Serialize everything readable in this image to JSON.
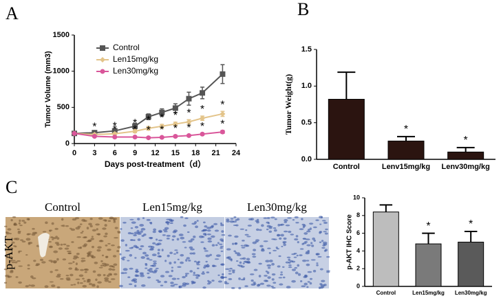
{
  "chart_data": [
    {
      "type": "line",
      "panel": "A",
      "y_label": "Tumor Volume (mm3)",
      "x_label": "Days post-treatment（d）",
      "x": [
        0,
        3,
        6,
        9,
        11,
        13,
        15,
        17,
        19,
        22
      ],
      "series": [
        {
          "name": "Control",
          "color": "#555555",
          "marker": "square",
          "values": [
            140,
            150,
            175,
            240,
            370,
            430,
            490,
            620,
            700,
            960
          ],
          "errors": [
            15,
            20,
            30,
            40,
            40,
            50,
            60,
            90,
            80,
            130
          ],
          "significance": [
            null,
            null,
            null,
            null,
            null,
            null,
            null,
            null,
            null,
            null
          ]
        },
        {
          "name": "Len15mg/kg",
          "color": "#e3c48a",
          "marker": "diamond",
          "values": [
            140,
            125,
            135,
            170,
            210,
            240,
            270,
            300,
            350,
            410
          ],
          "errors": [
            10,
            15,
            15,
            20,
            25,
            25,
            25,
            30,
            30,
            35
          ],
          "significance": [
            null,
            "*",
            "*",
            "*",
            "*",
            "*",
            "*",
            "*",
            "*",
            "*"
          ]
        },
        {
          "name": "Len30mg/kg",
          "color": "#d9569a",
          "marker": "circle",
          "values": [
            140,
            100,
            90,
            90,
            80,
            85,
            100,
            110,
            130,
            160
          ],
          "errors": [
            10,
            10,
            10,
            10,
            10,
            10,
            15,
            15,
            15,
            20
          ],
          "significance": [
            null,
            null,
            "*",
            "*",
            "*",
            "*",
            "*",
            "*",
            "*",
            "*"
          ]
        }
      ],
      "xlim": [
        0,
        24
      ],
      "xticks": [
        0,
        3,
        6,
        9,
        12,
        15,
        18,
        21,
        24
      ],
      "ylim": [
        0,
        1500
      ],
      "yticks": [
        0,
        500,
        1000,
        1500
      ],
      "legend": "top-left"
    },
    {
      "type": "bar",
      "panel": "B",
      "y_label": "Tumor Weight(g)",
      "categories": [
        "Control",
        "Lenv15mg/kg",
        "Lenv30mg/kg"
      ],
      "values": [
        0.82,
        0.25,
        0.1
      ],
      "errors": [
        0.37,
        0.06,
        0.06
      ],
      "significance": [
        null,
        "*",
        "*"
      ],
      "colors": [
        "#2b1410",
        "#2b1410",
        "#2b1410"
      ],
      "ylim": [
        0,
        1.5
      ],
      "yticks": [
        {
          "value": 0,
          "label": "0.0"
        },
        {
          "value": 0.5,
          "label": "0.5"
        },
        {
          "value": 1,
          "label": "1.0"
        },
        {
          "value": 1.5,
          "label": "1.5"
        }
      ]
    },
    {
      "type": "bar",
      "panel": "C",
      "y_label": "p-AKT IHC Score",
      "categories": [
        "Control",
        "Len15mg/kg",
        "Len30mg/kg"
      ],
      "values": [
        8.4,
        4.8,
        5.0
      ],
      "errors": [
        0.8,
        1.2,
        1.2
      ],
      "significance": [
        null,
        "*",
        "*"
      ],
      "colors": [
        "#bdbdbd",
        "#7a7a7a",
        "#5a5a5a"
      ],
      "ylim": [
        0,
        10
      ],
      "yticks": [
        0,
        2,
        4,
        6,
        8,
        10
      ]
    }
  ],
  "images": {
    "row_label": "p-AKT",
    "labels": [
      "Control",
      "Len15mg/kg",
      "Len30mg/kg"
    ]
  }
}
